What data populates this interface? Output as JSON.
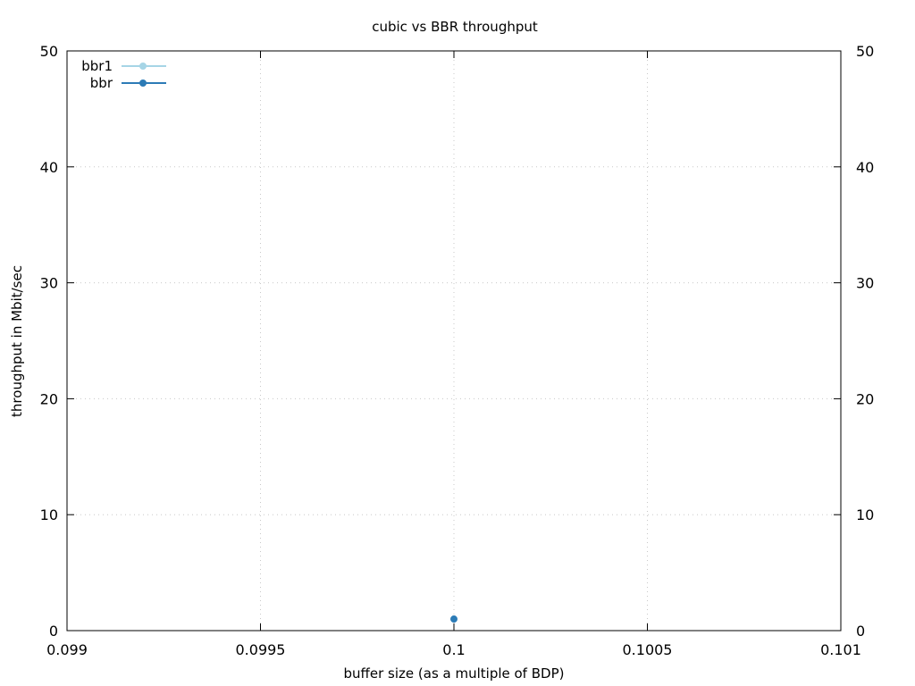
{
  "chart_data": {
    "type": "scatter",
    "title": "cubic vs BBR throughput",
    "xlabel": "buffer size (as a multiple of BDP)",
    "ylabel": "throughput in Mbit/sec",
    "xlim": [
      0.099,
      0.101
    ],
    "ylim": [
      0,
      50
    ],
    "xticks": [
      0.099,
      0.0995,
      0.1,
      0.1005,
      0.101
    ],
    "xtick_labels": [
      "0.099",
      "0.0995",
      "0.1",
      "0.1005",
      "0.101"
    ],
    "yticks": [
      0,
      10,
      20,
      30,
      40,
      50
    ],
    "ytick_labels": [
      "0",
      "10",
      "20",
      "30",
      "40",
      "50"
    ],
    "grid": true,
    "legend_position": "top-left",
    "series": [
      {
        "name": "bbr1",
        "color": "#a6d5e6",
        "x": [],
        "y": []
      },
      {
        "name": "bbr",
        "color": "#2c7bb6",
        "x": [
          0.1
        ],
        "y": [
          1
        ]
      }
    ]
  }
}
